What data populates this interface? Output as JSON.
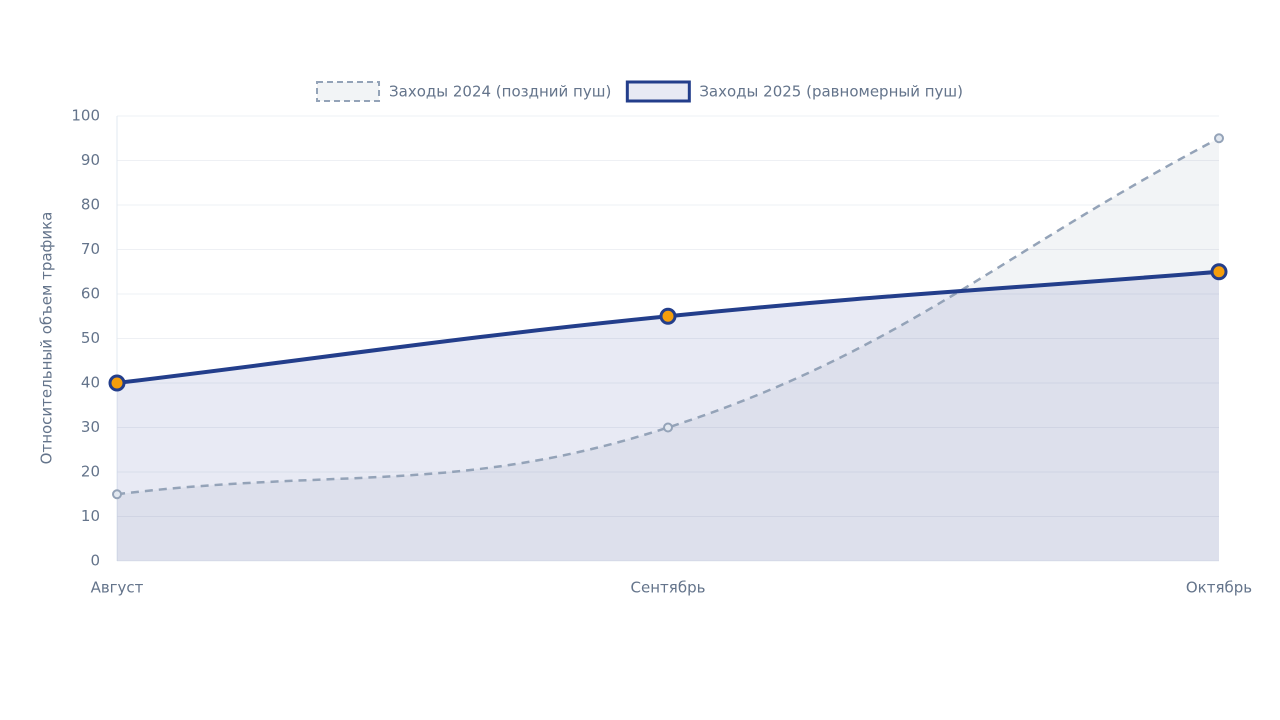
{
  "chart_data": {
    "type": "line",
    "y_label": "Относительный объем трафика",
    "categories": [
      "Август",
      "Сентябрь",
      "Октябрь"
    ],
    "series": [
      {
        "name": "Заходы 2024 (поздний пуш)",
        "color": "#94a3b8",
        "fill": "rgba(148,163,184,0.12)",
        "dash": true,
        "point_color": "#e2e8f0",
        "values": [
          15,
          30,
          95
        ]
      },
      {
        "name": "Заходы 2025 (равномерный пуш)",
        "color": "#233e8b",
        "fill": "rgba(99,115,180,0.15)",
        "dash": false,
        "point_color": "#f59e0b",
        "values": [
          40,
          55,
          65
        ]
      }
    ],
    "ylim": [
      0,
      100
    ],
    "yticks": [
      0,
      10,
      20,
      30,
      40,
      50,
      60,
      70,
      80,
      90,
      100
    ],
    "grid": true
  }
}
